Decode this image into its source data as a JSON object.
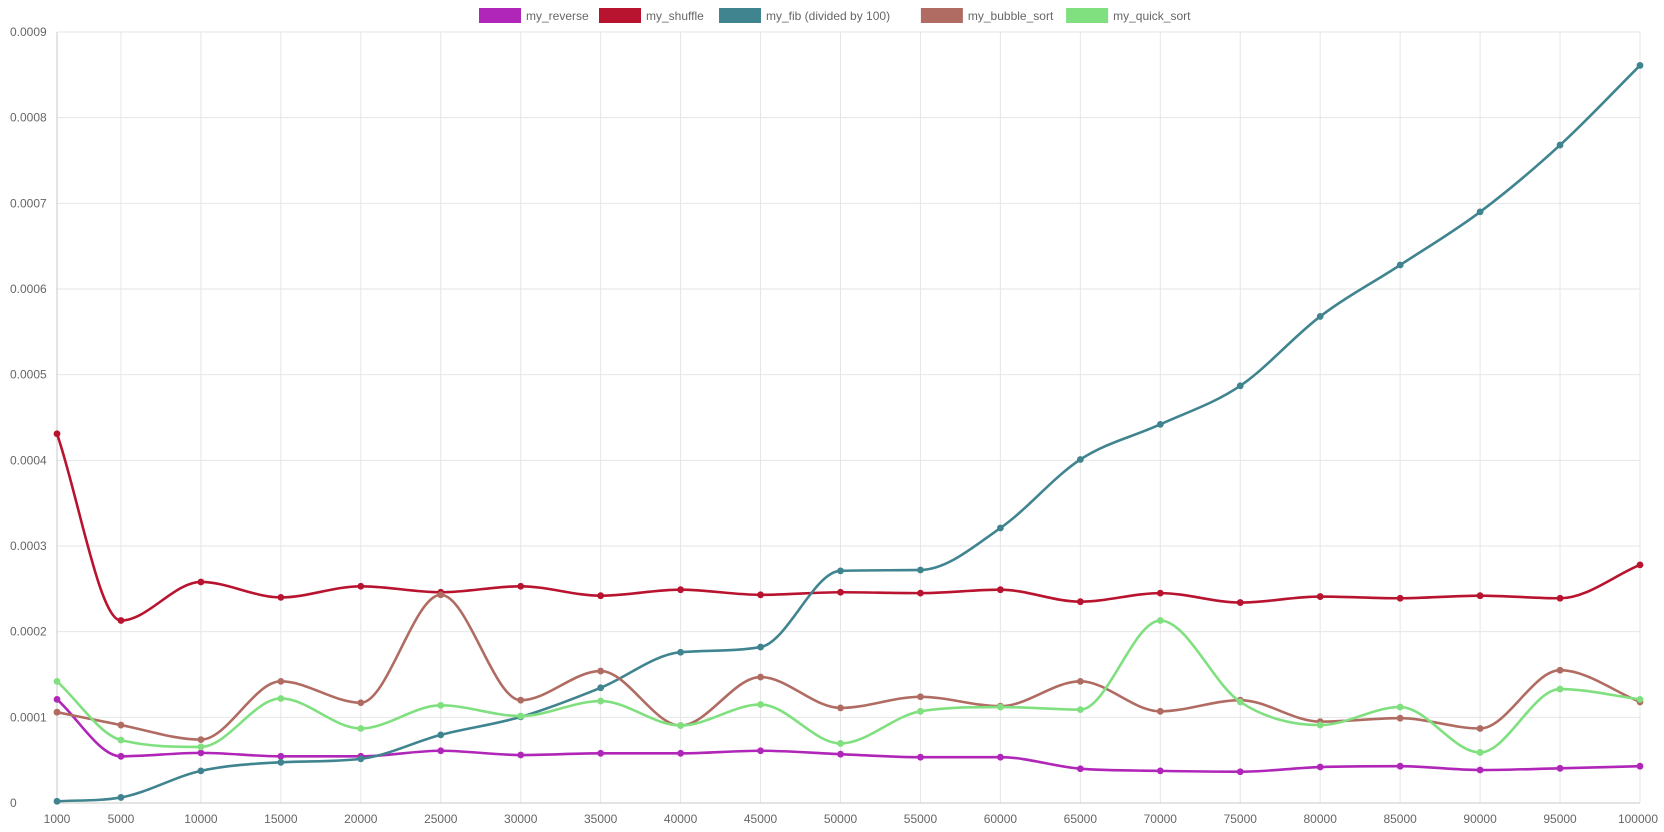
{
  "chart_data": {
    "type": "line",
    "title": "",
    "xlabel": "",
    "ylabel": "",
    "x": [
      1000,
      5000,
      10000,
      15000,
      20000,
      25000,
      30000,
      35000,
      40000,
      45000,
      50000,
      55000,
      60000,
      65000,
      70000,
      75000,
      80000,
      85000,
      90000,
      95000,
      100000
    ],
    "x_tick_labels": [
      "1000",
      "5000",
      "10000",
      "15000",
      "20000",
      "25000",
      "30000",
      "35000",
      "40000",
      "45000",
      "50000",
      "55000",
      "60000",
      "65000",
      "70000",
      "75000",
      "80000",
      "85000",
      "90000",
      "95000",
      "100000"
    ],
    "ylim": [
      0,
      0.0009
    ],
    "y_ticks": [
      0,
      0.0001,
      0.0002,
      0.0003,
      0.0004,
      0.0005,
      0.0006,
      0.0007,
      0.0008,
      0.0009
    ],
    "y_tick_labels": [
      "0",
      "0.0001",
      "0.0002",
      "0.0003",
      "0.0004",
      "0.0005",
      "0.0006",
      "0.0007",
      "0.0008",
      "0.0009"
    ],
    "grid": true,
    "legend_position": "top-center",
    "series": [
      {
        "name": "my_reverse",
        "color": "#b026b8",
        "values": [
          0.000121,
          5.45e-05,
          5.85e-05,
          5.45e-05,
          5.45e-05,
          6.1e-05,
          5.6e-05,
          5.8e-05,
          5.8e-05,
          6.1e-05,
          5.7e-05,
          5.35e-05,
          5.35e-05,
          4e-05,
          3.75e-05,
          3.65e-05,
          4.2e-05,
          4.3e-05,
          3.85e-05,
          4.05e-05,
          4.3e-05
        ]
      },
      {
        "name": "my_shuffle",
        "color": "#b8132f",
        "values": [
          0.000431,
          0.000213,
          0.000258,
          0.00024,
          0.000253,
          0.000246,
          0.000253,
          0.000242,
          0.000249,
          0.000243,
          0.000246,
          0.000245,
          0.000249,
          0.000235,
          0.000245,
          0.000234,
          0.000241,
          0.000239,
          0.000242,
          0.000239,
          0.000278
        ]
      },
      {
        "name": "my_fib (divided by 100)",
        "color": "#3f848f",
        "values": [
          2e-06,
          6.5e-06,
          3.75e-05,
          4.75e-05,
          5.15e-05,
          7.95e-05,
          0.0001005,
          0.0001345,
          0.000176,
          0.000182,
          0.000271,
          0.000272,
          0.000321,
          0.000401,
          0.000442,
          0.000487,
          0.000568,
          0.000628,
          0.00069,
          0.000768,
          0.000861
        ]
      },
      {
        "name": "my_bubble_sort",
        "color": "#b06c62",
        "values": [
          0.000106,
          9.1e-05,
          7.4e-05,
          0.000142,
          0.000117,
          0.000243,
          0.00012,
          0.000154,
          9.05e-05,
          0.000147,
          0.000111,
          0.000124,
          0.000113,
          0.000142,
          0.000107,
          0.00012,
          9.5e-05,
          9.9e-05,
          8.7e-05,
          0.000155,
          0.000118
        ]
      },
      {
        "name": "my_quick_sort",
        "color": "#80e080",
        "values": [
          0.000142,
          7.35e-05,
          6.55e-05,
          0.000122,
          8.7e-05,
          0.000114,
          0.0001015,
          0.000119,
          9.05e-05,
          0.000115,
          6.95e-05,
          0.000107,
          0.000112,
          0.000109,
          0.000213,
          0.000118,
          9.1e-05,
          0.000112,
          5.9e-05,
          0.000133,
          0.000121
        ]
      }
    ]
  }
}
